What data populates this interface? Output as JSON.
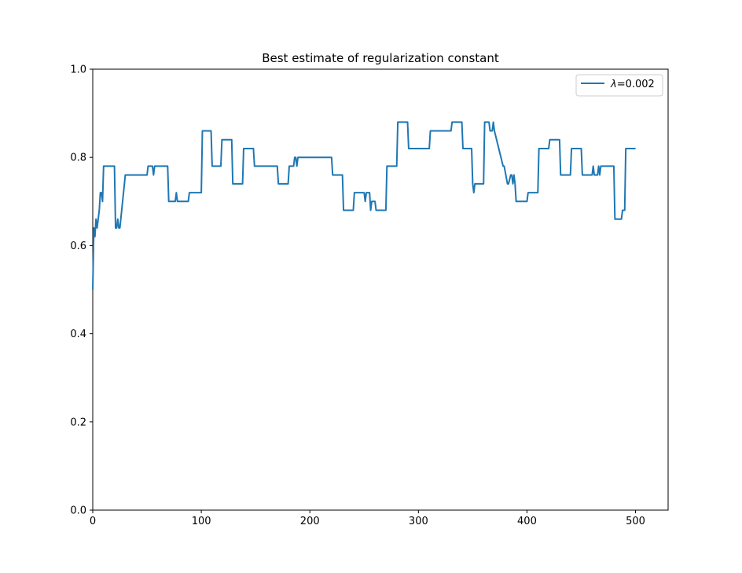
{
  "chart_data": {
    "type": "line",
    "title": "Best estimate of regularization constant",
    "xlabel": "",
    "ylabel": "",
    "xlim": [
      0,
      530
    ],
    "ylim": [
      0,
      1.0
    ],
    "xticks": [
      0,
      100,
      200,
      300,
      400,
      500
    ],
    "yticks": [
      0.0,
      0.2,
      0.4,
      0.6,
      0.8,
      1.0
    ],
    "xtick_labels": [
      "0",
      "100",
      "200",
      "300",
      "400",
      "500"
    ],
    "ytick_labels": [
      "0.0",
      "0.2",
      "0.4",
      "0.6",
      "0.8",
      "1.0"
    ],
    "grid": false,
    "legend": {
      "position": "top-right"
    },
    "series": [
      {
        "name_math": "λ",
        "name_rest": "=0.002",
        "color": "#1f77b4",
        "x": [
          0,
          1,
          2,
          3,
          4,
          5,
          6,
          7,
          8,
          9,
          10,
          20,
          21,
          22,
          23,
          24,
          25,
          30,
          50,
          51,
          55,
          56,
          57,
          58,
          69,
          70,
          76,
          77,
          78,
          79,
          80,
          88,
          89,
          100,
          101,
          109,
          110,
          118,
          119,
          128,
          129,
          138,
          139,
          148,
          149,
          170,
          171,
          180,
          181,
          185,
          186,
          187,
          188,
          189,
          190,
          220,
          221,
          230,
          231,
          240,
          241,
          242,
          243,
          250,
          251,
          252,
          255,
          256,
          257,
          260,
          261,
          270,
          271,
          280,
          281,
          290,
          291,
          310,
          311,
          330,
          331,
          340,
          341,
          349,
          350,
          351,
          352,
          360,
          361,
          365,
          366,
          367,
          368,
          369,
          370,
          378,
          379,
          382,
          383,
          385,
          386,
          387,
          388,
          389,
          390,
          400,
          401,
          410,
          411,
          420,
          421,
          430,
          431,
          440,
          441,
          450,
          451,
          460,
          461,
          462,
          463,
          465,
          466,
          467,
          468,
          470,
          471,
          480,
          481,
          487,
          488,
          490,
          491,
          500
        ],
        "y": [
          0.5,
          0.64,
          0.62,
          0.66,
          0.64,
          0.66,
          0.68,
          0.72,
          0.72,
          0.7,
          0.78,
          0.78,
          0.64,
          0.64,
          0.66,
          0.64,
          0.64,
          0.76,
          0.76,
          0.78,
          0.78,
          0.76,
          0.78,
          0.78,
          0.78,
          0.7,
          0.7,
          0.72,
          0.7,
          0.7,
          0.7,
          0.7,
          0.72,
          0.72,
          0.86,
          0.86,
          0.78,
          0.78,
          0.84,
          0.84,
          0.74,
          0.74,
          0.82,
          0.82,
          0.78,
          0.78,
          0.74,
          0.74,
          0.78,
          0.78,
          0.8,
          0.8,
          0.78,
          0.8,
          0.8,
          0.8,
          0.76,
          0.76,
          0.68,
          0.68,
          0.72,
          0.72,
          0.72,
          0.72,
          0.7,
          0.72,
          0.72,
          0.68,
          0.7,
          0.7,
          0.68,
          0.68,
          0.78,
          0.78,
          0.88,
          0.88,
          0.82,
          0.82,
          0.86,
          0.86,
          0.88,
          0.88,
          0.82,
          0.82,
          0.74,
          0.72,
          0.74,
          0.74,
          0.88,
          0.88,
          0.86,
          0.86,
          0.86,
          0.88,
          0.86,
          0.78,
          0.78,
          0.74,
          0.74,
          0.76,
          0.76,
          0.74,
          0.76,
          0.74,
          0.7,
          0.7,
          0.72,
          0.72,
          0.82,
          0.82,
          0.84,
          0.84,
          0.76,
          0.76,
          0.82,
          0.82,
          0.76,
          0.76,
          0.78,
          0.76,
          0.76,
          0.76,
          0.78,
          0.76,
          0.78,
          0.78,
          0.78,
          0.78,
          0.66,
          0.66,
          0.68,
          0.68,
          0.82,
          0.82
        ]
      }
    ]
  }
}
